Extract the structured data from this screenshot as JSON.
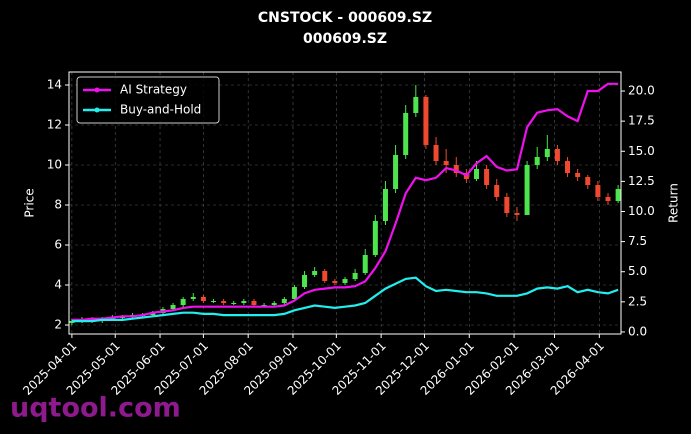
{
  "chart_data": {
    "type": "candlestick",
    "title": "CNSTOCK - 000609.SZ",
    "subtitle": "000609.SZ",
    "ylabel": "Price",
    "y2label": "Return",
    "x": [
      "2025-04-01",
      "2025-04-08",
      "2025-04-15",
      "2025-04-22",
      "2025-04-29",
      "2025-05-06",
      "2025-05-13",
      "2025-05-20",
      "2025-05-27",
      "2025-06-03",
      "2025-06-10",
      "2025-06-17",
      "2025-06-24",
      "2025-07-01",
      "2025-07-08",
      "2025-07-15",
      "2025-07-22",
      "2025-07-29",
      "2025-08-05",
      "2025-08-12",
      "2025-08-19",
      "2025-08-26",
      "2025-09-02",
      "2025-09-09",
      "2025-09-16",
      "2025-09-23",
      "2025-09-30",
      "2025-10-07",
      "2025-10-14",
      "2025-10-21",
      "2025-10-28",
      "2025-11-04",
      "2025-11-11",
      "2025-11-18",
      "2025-11-25",
      "2025-12-02",
      "2025-12-09",
      "2025-12-16",
      "2025-12-23",
      "2025-12-30",
      "2026-01-06",
      "2026-01-13",
      "2026-01-20",
      "2026-01-27",
      "2026-02-03",
      "2026-02-10",
      "2026-02-17",
      "2026-02-24",
      "2026-03-03",
      "2026-03-10",
      "2026-03-17",
      "2026-03-24",
      "2026-03-31",
      "2026-04-07",
      "2026-04-14"
    ],
    "open": [
      2.1,
      2.2,
      2.3,
      2.2,
      2.3,
      2.4,
      2.4,
      2.5,
      2.5,
      2.6,
      2.8,
      3.0,
      3.3,
      3.4,
      3.2,
      3.2,
      3.1,
      3.1,
      3.2,
      3.0,
      3.0,
      3.1,
      3.3,
      3.9,
      4.5,
      4.7,
      4.2,
      4.1,
      4.3,
      4.6,
      5.5,
      7.2,
      8.8,
      10.5,
      12.6,
      13.4,
      11.0,
      10.2,
      10.0,
      9.6,
      9.3,
      9.8,
      9.0,
      8.4,
      7.6,
      7.5,
      10.0,
      10.4,
      10.8,
      10.2,
      9.6,
      9.4,
      9.0,
      8.4,
      8.2
    ],
    "high": [
      2.3,
      2.4,
      2.4,
      2.4,
      2.5,
      2.5,
      2.6,
      2.6,
      2.7,
      2.9,
      3.1,
      3.4,
      3.6,
      3.5,
      3.3,
      3.3,
      3.2,
      3.3,
      3.3,
      3.1,
      3.2,
      3.4,
      4.0,
      4.7,
      4.9,
      4.8,
      4.3,
      4.4,
      4.8,
      5.8,
      7.5,
      9.2,
      11.0,
      13.0,
      14.0,
      13.5,
      11.4,
      10.8,
      10.4,
      9.8,
      10.2,
      10.0,
      9.3,
      8.6,
      7.9,
      10.2,
      10.9,
      11.5,
      11.0,
      10.4,
      9.8,
      9.5,
      9.2,
      8.6,
      9.0
    ],
    "low": [
      2.0,
      2.1,
      2.1,
      2.1,
      2.2,
      2.3,
      2.3,
      2.4,
      2.4,
      2.5,
      2.7,
      2.9,
      3.2,
      3.1,
      3.1,
      3.0,
      3.0,
      3.0,
      2.9,
      2.9,
      2.9,
      3.0,
      3.2,
      3.8,
      4.4,
      4.1,
      4.0,
      4.0,
      4.2,
      4.5,
      5.4,
      7.0,
      8.6,
      10.3,
      12.4,
      10.8,
      10.0,
      9.6,
      9.4,
      9.1,
      9.2,
      8.8,
      8.2,
      7.4,
      7.2,
      7.6,
      9.8,
      10.2,
      10.0,
      9.4,
      9.2,
      8.8,
      8.2,
      8.0,
      8.1
    ],
    "close": [
      2.2,
      2.3,
      2.2,
      2.3,
      2.4,
      2.4,
      2.5,
      2.5,
      2.6,
      2.8,
      3.0,
      3.3,
      3.4,
      3.2,
      3.2,
      3.1,
      3.1,
      3.2,
      3.0,
      3.0,
      3.1,
      3.3,
      3.9,
      4.5,
      4.7,
      4.2,
      4.1,
      4.3,
      4.6,
      5.5,
      7.2,
      8.8,
      10.5,
      12.6,
      13.4,
      11.0,
      10.2,
      10.0,
      9.6,
      9.3,
      9.8,
      9.0,
      8.4,
      7.6,
      7.5,
      10.0,
      10.4,
      10.8,
      10.2,
      9.6,
      9.4,
      9.0,
      8.4,
      8.2,
      8.8
    ],
    "up_color": "#4ee44e",
    "down_color": "#ef4a30",
    "series": [
      {
        "name": "AI Strategy",
        "color": "#ee11ee",
        "axis": "y2",
        "values": [
          1.0,
          1.0,
          1.1,
          1.1,
          1.2,
          1.3,
          1.3,
          1.4,
          1.6,
          1.7,
          1.8,
          2.0,
          2.1,
          2.1,
          2.1,
          2.1,
          2.1,
          2.1,
          2.1,
          2.1,
          2.1,
          2.2,
          2.6,
          3.2,
          3.5,
          3.6,
          3.7,
          3.7,
          3.8,
          4.2,
          5.3,
          6.7,
          9.0,
          11.5,
          12.8,
          12.6,
          12.8,
          13.6,
          13.4,
          13.0,
          14.0,
          14.6,
          13.7,
          13.4,
          13.5,
          17.0,
          18.2,
          18.4,
          18.5,
          17.9,
          17.5,
          20.0,
          20.0,
          20.6,
          20.6
        ]
      },
      {
        "name": "Buy-and-Hold",
        "color": "#22eeee",
        "axis": "y2",
        "values": [
          0.9,
          0.9,
          0.9,
          1.0,
          1.0,
          1.0,
          1.1,
          1.2,
          1.3,
          1.4,
          1.5,
          1.6,
          1.6,
          1.5,
          1.5,
          1.4,
          1.4,
          1.4,
          1.4,
          1.4,
          1.4,
          1.5,
          1.8,
          2.0,
          2.2,
          2.1,
          2.0,
          2.1,
          2.2,
          2.4,
          3.0,
          3.6,
          4.0,
          4.4,
          4.5,
          3.8,
          3.4,
          3.5,
          3.4,
          3.3,
          3.3,
          3.2,
          3.0,
          3.0,
          3.0,
          3.2,
          3.6,
          3.7,
          3.6,
          3.8,
          3.3,
          3.5,
          3.3,
          3.2,
          3.5
        ]
      }
    ],
    "xlim": [
      "2025-03-30",
      "2026-04-16"
    ],
    "xticks": [
      "2025-04-01",
      "2025-05-01",
      "2025-06-01",
      "2025-07-01",
      "2025-08-01",
      "2025-09-01",
      "2025-10-01",
      "2025-11-01",
      "2025-12-01",
      "2026-01-01",
      "2026-02-01",
      "2026-03-01",
      "2026-04-01"
    ],
    "ylim": [
      1.55,
      14.65
    ],
    "yticks": [
      2,
      4,
      6,
      8,
      10,
      12,
      14
    ],
    "y2lim": [
      -0.17,
      21.58
    ],
    "y2ticks": [
      {
        "value": 0,
        "label": "0.0"
      },
      {
        "value": 2.5,
        "label": "2.5"
      },
      {
        "value": 5,
        "label": "5.0"
      },
      {
        "value": 7.5,
        "label": "7.5"
      },
      {
        "value": 10,
        "label": "10.0"
      },
      {
        "value": 12.5,
        "label": "12.5"
      },
      {
        "value": 15,
        "label": "15.0"
      },
      {
        "value": 17.5,
        "label": "17.5"
      },
      {
        "value": 20,
        "label": "20.0"
      }
    ],
    "grid": true,
    "legend": "upper-left"
  },
  "watermark": "uqtool.com"
}
